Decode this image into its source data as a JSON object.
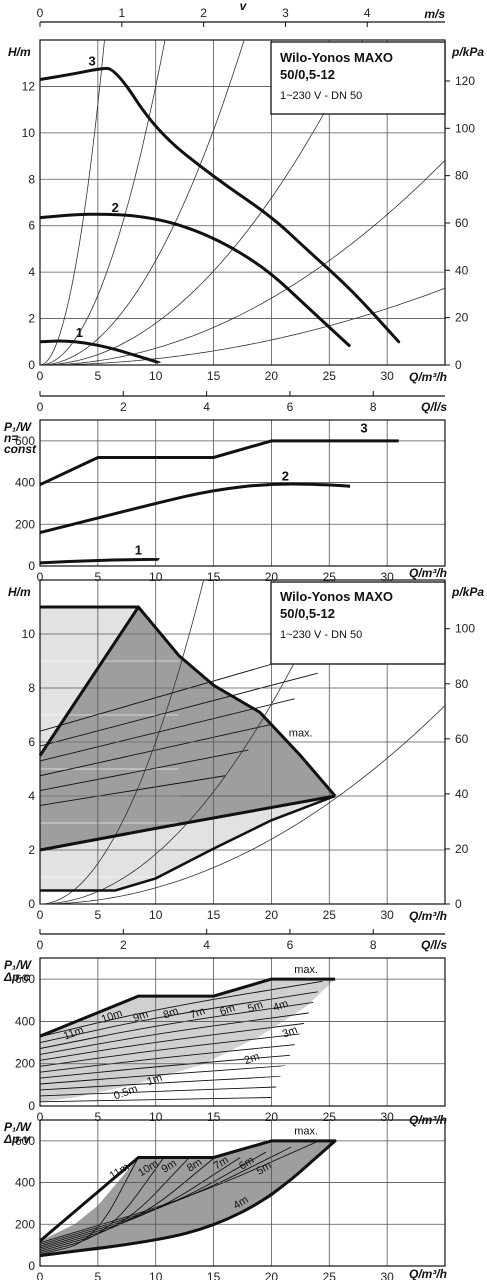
{
  "chart_data": [
    {
      "type": "line",
      "id": "p1",
      "title": "Wilo-Yonos MAXO 50/0,5-12",
      "subtitle": "1~230 V - DN 50",
      "ylabel": "H/m",
      "xlabel": "Q/m³/h",
      "y2label": "p/kPa",
      "x2label": "m/s",
      "topaxis_label": "v",
      "xlim": [
        0,
        35
      ],
      "ylim": [
        0,
        14
      ],
      "y2lim": [
        0,
        137.3
      ],
      "xticks": [
        0,
        5,
        10,
        15,
        20,
        25,
        30
      ],
      "yticks": [
        0,
        2,
        4,
        6,
        8,
        10,
        12
      ],
      "y2ticks": [
        0,
        20,
        40,
        60,
        80,
        100,
        120
      ],
      "x2ticks": [
        0,
        1,
        2,
        3,
        4
      ],
      "x2_scale_q_per_unit": 7.07,
      "series": [
        {
          "name": "1",
          "x": [
            0,
            2,
            4,
            6,
            8,
            10.3
          ],
          "y": [
            1.0,
            1.05,
            0.95,
            0.75,
            0.45,
            0.1
          ]
        },
        {
          "name": "2",
          "x": [
            0,
            3,
            5.5,
            8,
            11,
            14,
            17,
            20,
            23,
            26.8
          ],
          "y": [
            6.35,
            6.48,
            6.5,
            6.45,
            6.2,
            5.7,
            4.95,
            3.95,
            2.55,
            0.8
          ]
        },
        {
          "name": "3",
          "x": [
            0,
            3,
            5,
            6.5,
            10,
            15,
            20,
            23,
            27,
            31
          ],
          "y": [
            12.3,
            12.55,
            12.75,
            12.8,
            10.1,
            8.1,
            6.4,
            5.0,
            3.2,
            1.0
          ]
        }
      ],
      "system_curves": [
        0.45,
        0.12,
        0.045,
        0.018,
        0.0072,
        0.0027
      ],
      "series_labels": [
        {
          "text": "1",
          "x": 3.4,
          "y": 1.2
        },
        {
          "text": "2",
          "x": 6.5,
          "y": 6.6
        },
        {
          "text": "3",
          "x": 4.5,
          "y": 12.9
        }
      ]
    },
    {
      "type": "line",
      "id": "p2",
      "ylabel": "P₁/W",
      "ylabel2": "n=",
      "ylabel3": "const",
      "xlabel": "Q/m³/h",
      "x2label": "Q/l/s",
      "xlim": [
        0,
        35
      ],
      "ylim": [
        0,
        700
      ],
      "xticks": [
        0,
        5,
        10,
        15,
        20,
        25,
        30
      ],
      "yticks": [
        0,
        200,
        400,
        600
      ],
      "x2ticks": [
        0,
        2,
        4,
        6,
        8
      ],
      "x2_scale_q_per_unit": 3.6,
      "series": [
        {
          "name": "1",
          "x": [
            0,
            5,
            10.3
          ],
          "y": [
            15,
            28,
            32
          ]
        },
        {
          "name": "2",
          "x": [
            0,
            5,
            10,
            15,
            20,
            25,
            26.8
          ],
          "y": [
            160,
            230,
            300,
            365,
            395,
            390,
            382
          ]
        },
        {
          "name": "3",
          "x": [
            0,
            5,
            15,
            20,
            31
          ],
          "y": [
            390,
            520,
            520,
            600,
            600
          ]
        }
      ],
      "series_labels": [
        {
          "text": "1",
          "x": 8.5,
          "y": 55
        },
        {
          "text": "2",
          "x": 21.2,
          "y": 410
        },
        {
          "text": "3",
          "x": 28,
          "y": 640
        }
      ]
    },
    {
      "type": "area",
      "id": "p3",
      "title": "Wilo-Yonos MAXO 50/0,5-12",
      "subtitle": "1~230 V - DN 50",
      "ylabel": "H/m",
      "xlabel": "Q/m³/h",
      "y2label": "p/kPa",
      "xlim": [
        0,
        35
      ],
      "ylim": [
        0,
        12
      ],
      "y2lim": [
        0,
        117.7
      ],
      "xticks": [
        0,
        5,
        10,
        15,
        20,
        25,
        30
      ],
      "yticks": [
        0,
        2,
        4,
        6,
        8,
        10
      ],
      "y2ticks": [
        0,
        20,
        40,
        60,
        80,
        100
      ],
      "max_curve": {
        "x": [
          0,
          8.5,
          12,
          15,
          19,
          22.5,
          25.5
        ],
        "y": [
          11.0,
          11.0,
          9.2,
          8.1,
          7.1,
          5.5,
          4.0
        ]
      },
      "light_region": [
        [
          0,
          11.0
        ],
        [
          8.5,
          11.0
        ],
        [
          12,
          9.2
        ],
        [
          15,
          8.1
        ],
        [
          19,
          7.1
        ],
        [
          22.5,
          5.5
        ],
        [
          25.5,
          4.0
        ],
        [
          20,
          3.1
        ],
        [
          15,
          2.05
        ],
        [
          10,
          0.95
        ],
        [
          6.5,
          0.5
        ],
        [
          0,
          0.5
        ]
      ],
      "dark_region": [
        [
          0,
          5.5
        ],
        [
          8.5,
          11.0
        ],
        [
          12,
          9.2
        ],
        [
          15,
          8.1
        ],
        [
          19,
          7.1
        ],
        [
          22.5,
          5.5
        ],
        [
          25.5,
          4.0
        ],
        [
          10,
          2.8
        ],
        [
          0,
          2.0
        ]
      ],
      "hatch_levels": [
        5,
        6,
        7,
        8,
        9,
        10
      ],
      "system_curves": [
        0.06,
        0.0185,
        0.006
      ],
      "annotation": "max."
    },
    {
      "type": "area",
      "id": "p4",
      "ylabel": "P₁/W",
      "ylabel2": "Δp-c",
      "xlabel": "Q/m³/h",
      "x2label": "Q/l/s",
      "xlim": [
        0,
        35
      ],
      "ylim": [
        0,
        700
      ],
      "xticks": [
        0,
        5,
        10,
        15,
        20,
        25,
        30
      ],
      "yticks": [
        0,
        200,
        400,
        600
      ],
      "x2ticks": [
        0,
        2,
        4,
        6,
        8
      ],
      "x2_scale_q_per_unit": 3.6,
      "max_curve": {
        "x": [
          0,
          8.5,
          15,
          20,
          25.5
        ],
        "y": [
          330,
          520,
          520,
          600,
          600
        ]
      },
      "region": [
        [
          0,
          330
        ],
        [
          8.5,
          520
        ],
        [
          15,
          520
        ],
        [
          20,
          600
        ],
        [
          25.5,
          600
        ],
        [
          23,
          470
        ],
        [
          19,
          330
        ],
        [
          14,
          195
        ],
        [
          8,
          100
        ],
        [
          3,
          40
        ],
        [
          0,
          20
        ]
      ],
      "curve_labels": [
        "11m",
        "10m",
        "9m",
        "8m",
        "7m",
        "6m",
        "5m",
        "4m",
        "3m",
        "2m",
        "1m",
        "0.5m"
      ],
      "annotation": "max."
    },
    {
      "type": "area",
      "id": "p5",
      "ylabel": "P₁/W",
      "ylabel2": "Δp-v",
      "xlabel": "Q/m³/h",
      "xlim": [
        0,
        35
      ],
      "ylim": [
        0,
        700
      ],
      "xticks": [
        0,
        5,
        10,
        15,
        20,
        25,
        30
      ],
      "yticks": [
        0,
        200,
        400,
        600
      ],
      "max_curve": {
        "x": [
          0,
          8.5,
          15,
          20,
          25.5
        ],
        "y": [
          120,
          520,
          520,
          600,
          600
        ]
      },
      "region": [
        [
          0,
          120
        ],
        [
          3,
          200
        ],
        [
          5,
          290
        ],
        [
          8.5,
          520
        ],
        [
          15,
          520
        ],
        [
          20,
          600
        ],
        [
          25.5,
          600
        ],
        [
          20,
          330
        ],
        [
          15,
          190
        ],
        [
          10,
          120
        ],
        [
          5,
          75
        ],
        [
          0,
          50
        ]
      ],
      "curve_labels": [
        "11m",
        "10m",
        "9m",
        "8m",
        "7m",
        "6m",
        "5m",
        "4m"
      ],
      "annotation": "max."
    }
  ]
}
